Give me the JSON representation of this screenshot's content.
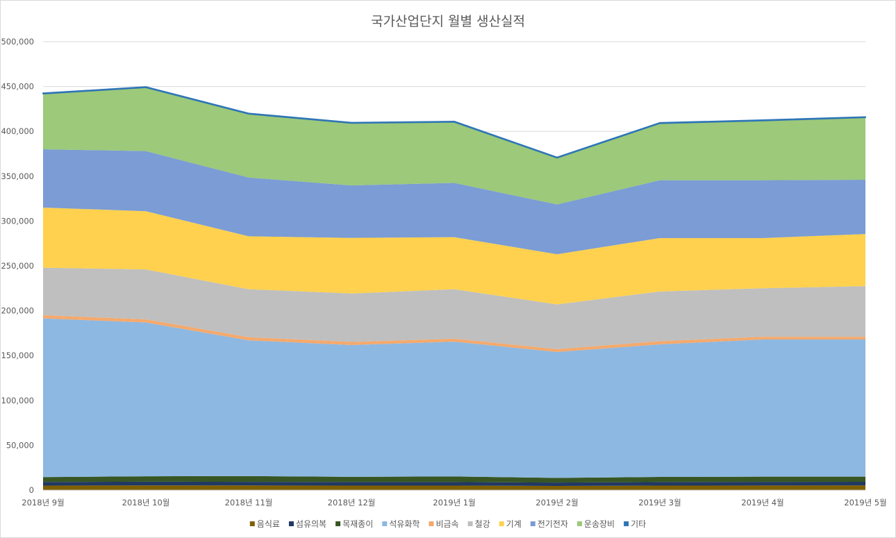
{
  "chart_data": {
    "type": "area",
    "stacked": true,
    "title": "국가산업단지 월별 생산실적",
    "categories": [
      "2018년 9월",
      "2018년 10월",
      "2018년 11월",
      "2018년 12월",
      "2019년 1월",
      "2019년 2월",
      "2019년 3월",
      "2019년 4월",
      "2019년 5월"
    ],
    "ylim": [
      0,
      500000
    ],
    "yticks": [
      0,
      50000,
      100000,
      150000,
      200000,
      250000,
      300000,
      350000,
      400000,
      450000,
      500000
    ],
    "ytick_labels": [
      "0",
      "50,000",
      "100,000",
      "150,000",
      "200,000",
      "250,000",
      "300,000",
      "350,000",
      "400,000",
      "450,000",
      "500,000"
    ],
    "grid": true,
    "legend_position": "bottom",
    "series": [
      {
        "name": "음식료",
        "color": "#7f6000",
        "values": [
          5000,
          5200,
          5200,
          5000,
          5000,
          4600,
          5000,
          5100,
          5200
        ]
      },
      {
        "name": "섬유의복",
        "color": "#203864",
        "values": [
          4000,
          4200,
          4000,
          4000,
          4000,
          3800,
          4000,
          4100,
          4100
        ]
      },
      {
        "name": "목재종이",
        "color": "#375623",
        "values": [
          5500,
          6000,
          6400,
          5800,
          6200,
          5200,
          5700,
          5800,
          5700
        ]
      },
      {
        "name": "석유화학",
        "color": "#8db8e1",
        "values": [
          177000,
          171500,
          151400,
          147000,
          150300,
          140400,
          147800,
          153000,
          153000
        ]
      },
      {
        "name": "비금속",
        "color": "#f4a96c",
        "values": [
          3500,
          3500,
          3500,
          3400,
          3300,
          3200,
          3500,
          3000,
          3000
        ]
      },
      {
        "name": "철강",
        "color": "#bfbfbf",
        "values": [
          53000,
          55600,
          53500,
          54000,
          55200,
          49800,
          55500,
          54000,
          56500
        ]
      },
      {
        "name": "기계",
        "color": "#ffd14f",
        "values": [
          67000,
          65000,
          59000,
          62000,
          58000,
          56000,
          59500,
          56000,
          58000
        ]
      },
      {
        "name": "전기전자",
        "color": "#7b9cd4",
        "values": [
          65000,
          67000,
          65500,
          58500,
          60500,
          55500,
          64500,
          64500,
          60500
        ]
      },
      {
        "name": "운송장비",
        "color": "#9cc97a",
        "values": [
          62000,
          71000,
          71000,
          69500,
          68000,
          52000,
          63500,
          66500,
          69500
        ]
      },
      {
        "name": "기타",
        "color": "#2e75b6",
        "values": [
          500,
          500,
          500,
          500,
          500,
          500,
          500,
          500,
          500
        ]
      }
    ]
  }
}
